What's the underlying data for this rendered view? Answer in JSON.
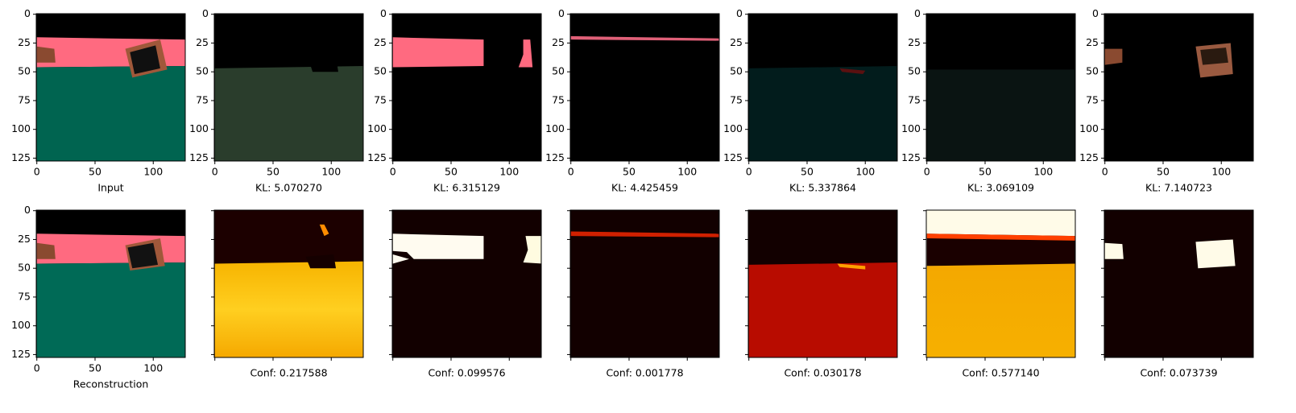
{
  "axes": {
    "xlim": [
      -0.5,
      127.5
    ],
    "ylim": [
      127.5,
      -0.5
    ],
    "xticks": [
      0,
      50,
      100
    ],
    "yticks": [
      0,
      25,
      50,
      75,
      100,
      125
    ]
  },
  "rows": [
    {
      "panels": [
        {
          "caption": "Input"
        },
        {
          "caption": "KL: 5.070270"
        },
        {
          "caption": "KL: 6.315129"
        },
        {
          "caption": "KL: 4.425459"
        },
        {
          "caption": "KL: 5.337864"
        },
        {
          "caption": "KL: 3.069109"
        },
        {
          "caption": "KL: 7.140723"
        }
      ]
    },
    {
      "panels": [
        {
          "caption": "Reconstruction"
        },
        {
          "caption": "Conf: 0.217588"
        },
        {
          "caption": "Conf: 0.099576"
        },
        {
          "caption": "Conf: 0.001778"
        },
        {
          "caption": "Conf: 0.030178"
        },
        {
          "caption": "Conf: 0.577140"
        },
        {
          "caption": "Conf: 0.073739"
        }
      ]
    }
  ]
}
